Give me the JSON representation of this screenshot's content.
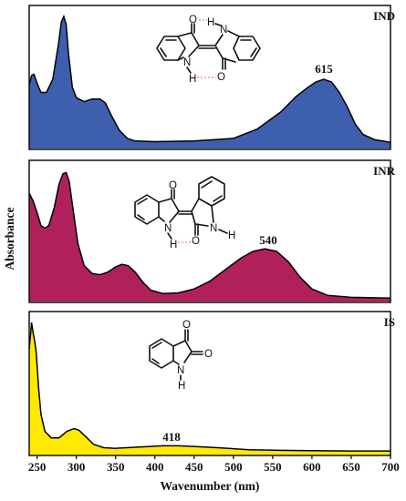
{
  "chart_data": {
    "type": "area",
    "xlabel": "Wavenumber (nm)",
    "ylabel": "Absorbance",
    "xlim": [
      240,
      700
    ],
    "x_ticks": [
      250,
      300,
      350,
      400,
      450,
      500,
      550,
      600,
      650,
      700
    ],
    "panels": [
      {
        "label": "IND",
        "color": "#3e5fae",
        "ylim": [
          0,
          1
        ],
        "annotation": {
          "text": "615",
          "x": 615
        },
        "points": [
          [
            240,
            0.48
          ],
          [
            243,
            0.55
          ],
          [
            246,
            0.56
          ],
          [
            250,
            0.49
          ],
          [
            255,
            0.42
          ],
          [
            262,
            0.42
          ],
          [
            270,
            0.52
          ],
          [
            277,
            0.78
          ],
          [
            281,
            0.96
          ],
          [
            284,
            1.0
          ],
          [
            287,
            0.94
          ],
          [
            290,
            0.72
          ],
          [
            295,
            0.46
          ],
          [
            300,
            0.38
          ],
          [
            310,
            0.35
          ],
          [
            320,
            0.37
          ],
          [
            330,
            0.37
          ],
          [
            337,
            0.34
          ],
          [
            345,
            0.24
          ],
          [
            355,
            0.13
          ],
          [
            365,
            0.07
          ],
          [
            375,
            0.05
          ],
          [
            400,
            0.045
          ],
          [
            450,
            0.05
          ],
          [
            500,
            0.07
          ],
          [
            530,
            0.14
          ],
          [
            560,
            0.27
          ],
          [
            580,
            0.39
          ],
          [
            595,
            0.46
          ],
          [
            605,
            0.5
          ],
          [
            615,
            0.52
          ],
          [
            625,
            0.5
          ],
          [
            635,
            0.42
          ],
          [
            645,
            0.31
          ],
          [
            655,
            0.18
          ],
          [
            665,
            0.1
          ],
          [
            680,
            0.06
          ],
          [
            700,
            0.04
          ]
        ]
      },
      {
        "label": "INR",
        "color": "#b0215c",
        "ylim": [
          0,
          1
        ],
        "annotation": {
          "text": "540",
          "x": 540
        },
        "points": [
          [
            240,
            0.83
          ],
          [
            245,
            0.77
          ],
          [
            250,
            0.68
          ],
          [
            255,
            0.58
          ],
          [
            260,
            0.56
          ],
          [
            265,
            0.58
          ],
          [
            272,
            0.72
          ],
          [
            278,
            0.9
          ],
          [
            283,
            0.98
          ],
          [
            287,
            0.99
          ],
          [
            291,
            0.92
          ],
          [
            296,
            0.7
          ],
          [
            302,
            0.44
          ],
          [
            310,
            0.27
          ],
          [
            320,
            0.21
          ],
          [
            330,
            0.2
          ],
          [
            340,
            0.22
          ],
          [
            350,
            0.26
          ],
          [
            358,
            0.28
          ],
          [
            366,
            0.27
          ],
          [
            375,
            0.22
          ],
          [
            385,
            0.14
          ],
          [
            395,
            0.08
          ],
          [
            410,
            0.055
          ],
          [
            430,
            0.06
          ],
          [
            450,
            0.09
          ],
          [
            470,
            0.15
          ],
          [
            490,
            0.24
          ],
          [
            510,
            0.33
          ],
          [
            525,
            0.38
          ],
          [
            540,
            0.4
          ],
          [
            555,
            0.38
          ],
          [
            570,
            0.3
          ],
          [
            585,
            0.18
          ],
          [
            600,
            0.09
          ],
          [
            620,
            0.04
          ],
          [
            650,
            0.025
          ],
          [
            700,
            0.02
          ]
        ]
      },
      {
        "label": "IS",
        "color": "#ffe900",
        "ylim": [
          0,
          1
        ],
        "annotation": {
          "text": "418",
          "x": 418
        },
        "points": [
          [
            240,
            0.8
          ],
          [
            242,
            0.92
          ],
          [
            243,
            1.0
          ],
          [
            245,
            0.92
          ],
          [
            247,
            0.86
          ],
          [
            249,
            0.77
          ],
          [
            252,
            0.5
          ],
          [
            255,
            0.3
          ],
          [
            260,
            0.17
          ],
          [
            268,
            0.12
          ],
          [
            278,
            0.12
          ],
          [
            288,
            0.17
          ],
          [
            297,
            0.19
          ],
          [
            303,
            0.18
          ],
          [
            312,
            0.13
          ],
          [
            322,
            0.07
          ],
          [
            335,
            0.045
          ],
          [
            350,
            0.04
          ],
          [
            380,
            0.05
          ],
          [
            410,
            0.06
          ],
          [
            430,
            0.06
          ],
          [
            450,
            0.055
          ],
          [
            480,
            0.045
          ],
          [
            520,
            0.03
          ],
          [
            560,
            0.025
          ],
          [
            600,
            0.022
          ],
          [
            650,
            0.02
          ],
          [
            700,
            0.02
          ]
        ]
      }
    ]
  }
}
